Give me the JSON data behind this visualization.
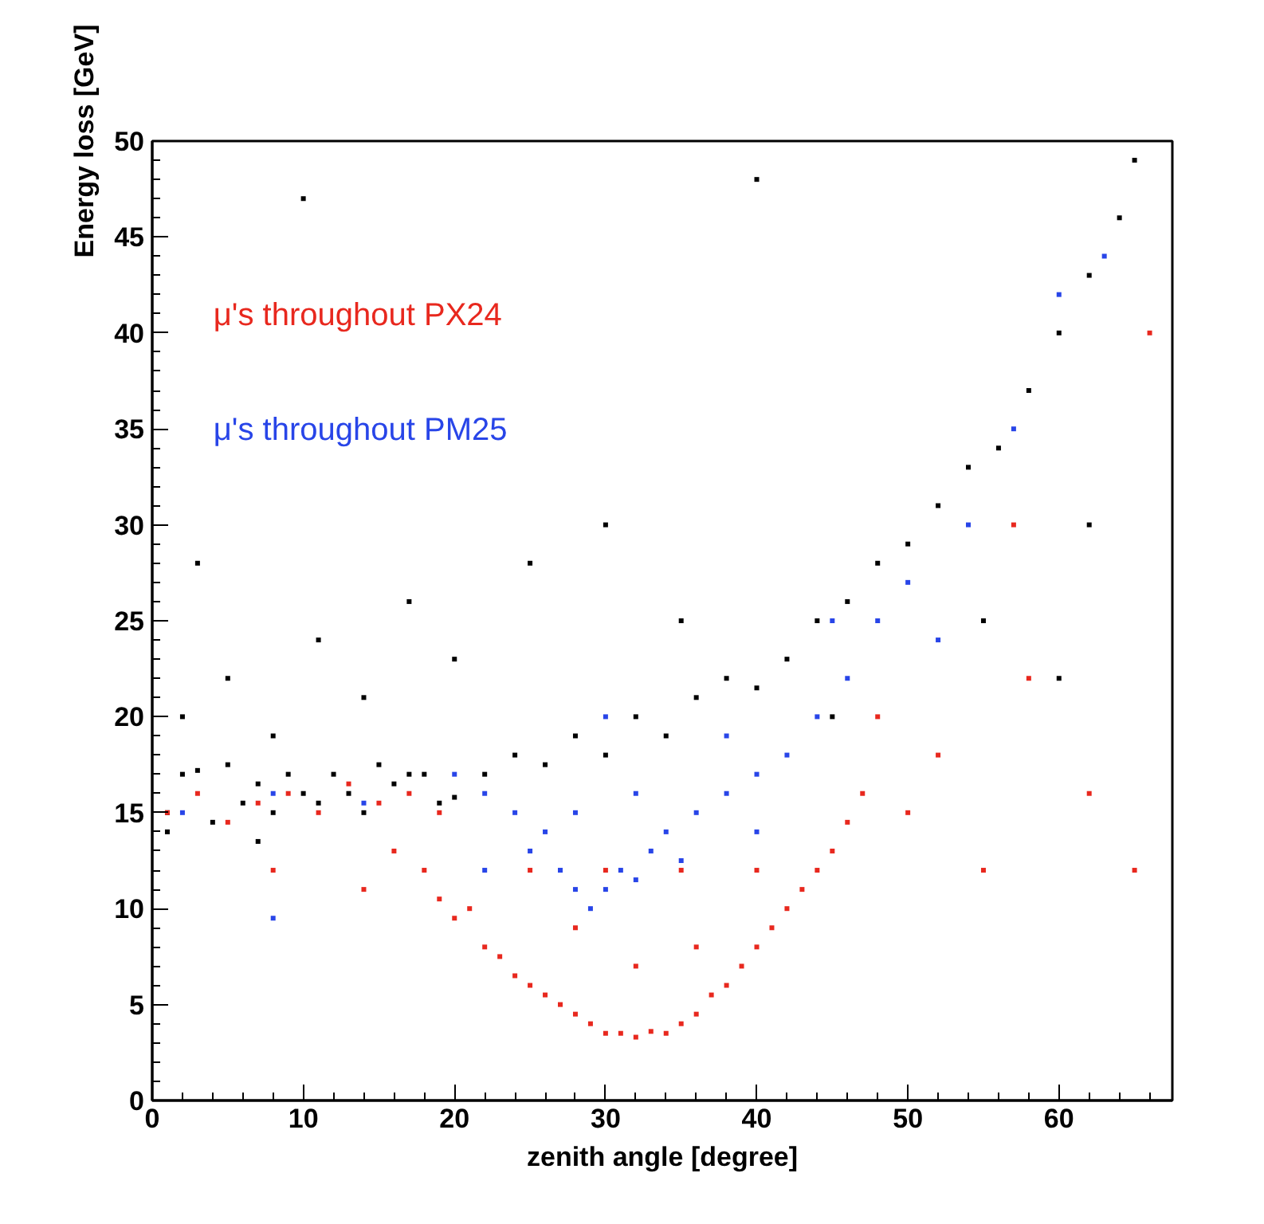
{
  "chart_data": {
    "type": "scatter",
    "xlabel": "zenith angle [degree]",
    "ylabel": "Energy loss [GeV]",
    "xlim": [
      0,
      67.5
    ],
    "ylim": [
      0,
      50
    ],
    "xticks": [
      0,
      10,
      20,
      30,
      40,
      50,
      60
    ],
    "yticks": [
      0,
      5,
      10,
      15,
      20,
      25,
      30,
      35,
      40,
      45,
      50
    ],
    "grid": false,
    "marker": "square",
    "series": [
      {
        "color": "#000000",
        "x": [
          1,
          2,
          3,
          4,
          5,
          6,
          7,
          8,
          9,
          10,
          11,
          12,
          13,
          14,
          15,
          16,
          17,
          18,
          19,
          20,
          2,
          5,
          8,
          11,
          14,
          17,
          3,
          20,
          22,
          24,
          26,
          28,
          30,
          32,
          34,
          36,
          38,
          40,
          42,
          44,
          46,
          48,
          50,
          52,
          54,
          56,
          58,
          60,
          62,
          64,
          65,
          25,
          30,
          35,
          45,
          55,
          62,
          10,
          40,
          60,
          1,
          7
        ],
        "values": [
          15,
          17,
          17.2,
          14.5,
          17.5,
          15.5,
          16.5,
          15,
          17,
          16,
          15.5,
          17,
          16,
          15,
          17.5,
          16.5,
          17,
          17,
          15.5,
          15.8,
          20,
          22,
          19,
          24,
          21,
          26,
          28,
          23,
          17,
          18,
          17.5,
          19,
          18,
          20,
          19,
          21,
          22,
          21.5,
          23,
          25,
          26,
          28,
          29,
          31,
          33,
          34,
          37,
          40,
          43,
          46,
          49,
          28,
          30,
          25,
          20,
          25,
          30,
          47,
          48,
          22,
          14,
          13.5
        ]
      },
      {
        "name": "μ's throughout PX24",
        "color": "#e8281e",
        "x": [
          1,
          3,
          5,
          7,
          9,
          11,
          13,
          15,
          17,
          19,
          16,
          18,
          19,
          20,
          21,
          22,
          23,
          24,
          25,
          26,
          27,
          28,
          29,
          30,
          31,
          32,
          33,
          34,
          35,
          36,
          37,
          38,
          39,
          40,
          41,
          42,
          43,
          44,
          45,
          46,
          47,
          25,
          28,
          32,
          36,
          40,
          35,
          30,
          48,
          50,
          52,
          55,
          58,
          62,
          65,
          14,
          8,
          66,
          57
        ],
        "values": [
          15,
          16,
          14.5,
          15.5,
          16,
          15,
          16.5,
          15.5,
          16,
          15,
          13,
          12,
          10.5,
          9.5,
          10,
          8,
          7.5,
          6.5,
          6,
          5.5,
          5,
          4.5,
          4,
          3.5,
          3.5,
          3.3,
          3.6,
          3.5,
          4,
          4.5,
          5.5,
          6,
          7,
          8,
          9,
          10,
          11,
          12,
          13,
          14.5,
          16,
          12,
          9,
          7,
          8,
          12,
          12,
          12,
          20,
          15,
          18,
          12,
          22,
          16,
          12,
          11,
          12,
          40,
          30
        ]
      },
      {
        "name": "μ's throughout PM25",
        "color": "#2845e8",
        "x": [
          2,
          8,
          14,
          20,
          22,
          24,
          25,
          26,
          27,
          28,
          29,
          30,
          31,
          32,
          33,
          34,
          35,
          36,
          38,
          40,
          42,
          44,
          46,
          48,
          50,
          52,
          54,
          57,
          60,
          63,
          28,
          32,
          30,
          22,
          8,
          40,
          45,
          38
        ],
        "values": [
          15,
          16,
          15.5,
          17,
          16,
          15,
          13,
          14,
          12,
          11,
          10,
          11,
          12,
          11.5,
          13,
          14,
          12.5,
          15,
          16,
          17,
          18,
          20,
          22,
          25,
          27,
          24,
          30,
          35,
          42,
          44,
          15,
          16,
          20,
          12,
          9.5,
          14,
          25,
          19
        ]
      }
    ]
  }
}
